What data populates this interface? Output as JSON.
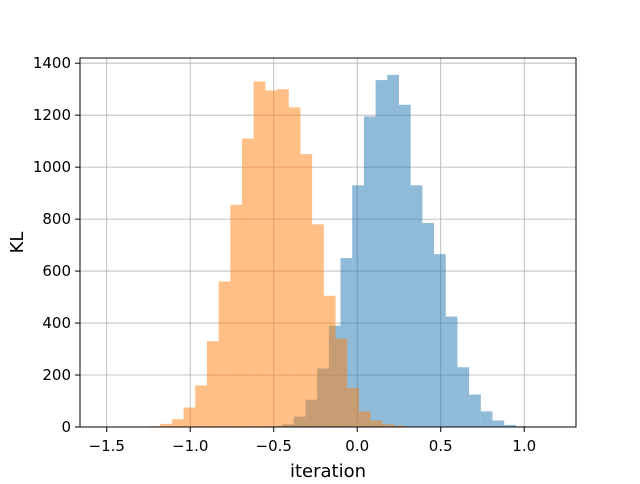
{
  "chart_data": {
    "type": "bar",
    "title": "",
    "xlabel": "iteration",
    "ylabel": "KL",
    "xlim": [
      -1.66,
      1.31
    ],
    "ylim": [
      0,
      1420
    ],
    "grid": true,
    "x_ticks": [
      -1.5,
      -1.0,
      -0.5,
      0.0,
      0.5,
      1.0
    ],
    "x_tick_labels": [
      "−1.5",
      "−1.0",
      "−0.5",
      "0.0",
      "0.5",
      "1.0"
    ],
    "y_ticks": [
      0,
      200,
      400,
      600,
      800,
      1000,
      1200,
      1400
    ],
    "y_tick_labels": [
      "0",
      "200",
      "400",
      "600",
      "800",
      "1000",
      "1200",
      "1400"
    ],
    "series": [
      {
        "color": "#1f77b4",
        "opacity": 0.5,
        "bin_edges": [
          -0.52,
          -0.45,
          -0.38,
          -0.31,
          -0.24,
          -0.17,
          -0.1,
          -0.03,
          0.04,
          0.11,
          0.18,
          0.25,
          0.32,
          0.39,
          0.46,
          0.53,
          0.6,
          0.67,
          0.74,
          0.81,
          0.88,
          0.95,
          1.02,
          1.09,
          1.16
        ],
        "counts": [
          3,
          10,
          40,
          105,
          225,
          390,
          650,
          930,
          1195,
          1335,
          1355,
          1240,
          930,
          785,
          665,
          425,
          230,
          125,
          60,
          25,
          8,
          3,
          1,
          1
        ]
      },
      {
        "color": "#ff7f0e",
        "opacity": 0.5,
        "bin_edges": [
          -1.32,
          -1.25,
          -1.18,
          -1.11,
          -1.04,
          -0.97,
          -0.9,
          -0.83,
          -0.76,
          -0.69,
          -0.62,
          -0.55,
          -0.48,
          -0.41,
          -0.34,
          -0.27,
          -0.2,
          -0.13,
          -0.06,
          0.01,
          0.08,
          0.15,
          0.22,
          0.29,
          0.36,
          0.43
        ],
        "counts": [
          1,
          3,
          12,
          30,
          75,
          160,
          330,
          560,
          855,
          1110,
          1330,
          1295,
          1300,
          1230,
          1050,
          780,
          505,
          340,
          150,
          60,
          25,
          10,
          5,
          2,
          1
        ]
      }
    ]
  }
}
